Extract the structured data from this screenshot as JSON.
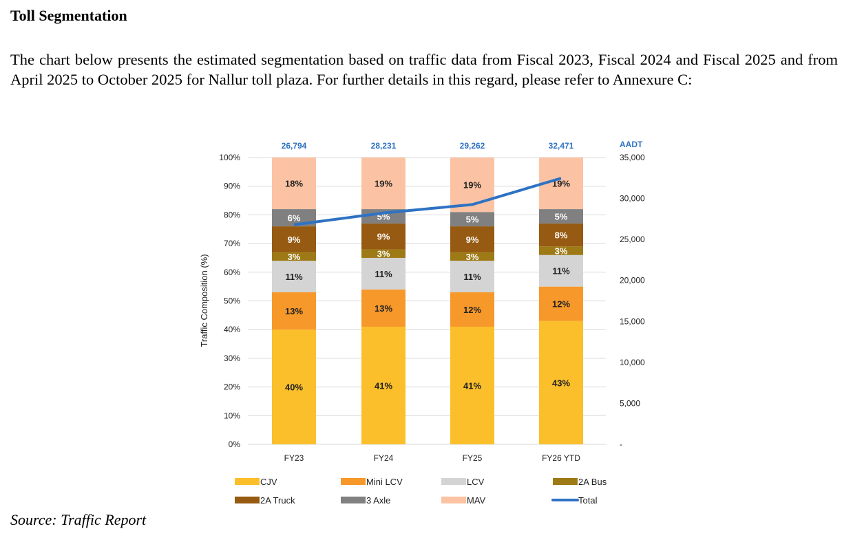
{
  "heading": "Toll Segmentation",
  "paragraph": "The chart below presents the estimated segmentation based on traffic data from Fiscal 2023, Fiscal 2024 and Fiscal 2025 and from April 2025 to October 2025 for Nallur toll plaza. For further details in this regard, please refer to Annexure C:",
  "source": "Source: Traffic Report",
  "chart_data": {
    "type": "bar",
    "stacked": true,
    "categories": [
      "FY23",
      "FY24",
      "FY25",
      "FY26 YTD"
    ],
    "series": [
      {
        "name": "CJV",
        "color": "#FBBF2B",
        "values": [
          40,
          41,
          41,
          43
        ]
      },
      {
        "name": "Mini LCV",
        "color": "#F7982A",
        "values": [
          13,
          13,
          12,
          12
        ]
      },
      {
        "name": "LCV",
        "color": "#D4D4D4",
        "values": [
          11,
          11,
          11,
          11
        ]
      },
      {
        "name": "2A Bus",
        "color": "#9E7A16",
        "values": [
          3,
          3,
          3,
          3
        ]
      },
      {
        "name": "2A Truck",
        "color": "#965A12",
        "values": [
          9,
          9,
          9,
          8
        ]
      },
      {
        "name": "3 Axle",
        "color": "#808080",
        "values": [
          6,
          5,
          5,
          5
        ]
      },
      {
        "name": "MAV",
        "color": "#FBC3A3",
        "values": [
          18,
          19,
          19,
          19
        ]
      }
    ],
    "line_series": {
      "name": "Total",
      "color": "#2E72C4",
      "axis": "right",
      "values": [
        26794,
        28231,
        29262,
        32471
      ],
      "labels": [
        "26,794",
        "28,231",
        "29,262",
        "32,471"
      ]
    },
    "ylabel": "Traffic Composition (%)",
    "ylim": [
      0,
      100
    ],
    "yticks": [
      "0%",
      "10%",
      "20%",
      "30%",
      "40%",
      "50%",
      "60%",
      "70%",
      "80%",
      "90%",
      "100%"
    ],
    "y2label": "AADT",
    "y2lim": [
      0,
      35000
    ],
    "y2ticks": [
      "-",
      "5,000",
      "10,000",
      "15,000",
      "20,000",
      "25,000",
      "30,000",
      "35,000"
    ],
    "grid": true,
    "legend": "bottom"
  }
}
